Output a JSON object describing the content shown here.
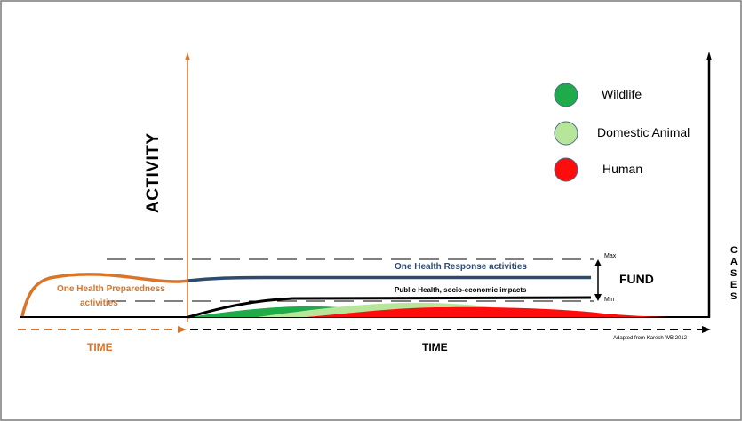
{
  "activity_label": "ACTIVITY",
  "cases_letters": [
    "C",
    "A",
    "S",
    "E",
    "S"
  ],
  "legend": [
    {
      "label": "Wildlife",
      "color": "#1fab4a"
    },
    {
      "label": "Domestic Animal",
      "color": "#b7e59a"
    },
    {
      "label": "Human",
      "color": "#ff0d0d"
    }
  ],
  "max_label": "Max",
  "min_label": "Min",
  "fund_label": "FUND",
  "response_label": "One Health Response activities",
  "preparedness_label_1": "One Health Preparedness",
  "preparedness_label_2": "activities",
  "impacts_label": "Public Health, socio-economic impacts",
  "time_left_label": "TIME",
  "time_right_label": "TIME",
  "credit": "Adapted from Karesh WB 2012",
  "colors": {
    "preparedness": "#d9752a",
    "response": "#2f4a6f",
    "wildlife": "#1fab4a",
    "domestic": "#b7e59a",
    "human": "#ff0d0d"
  }
}
